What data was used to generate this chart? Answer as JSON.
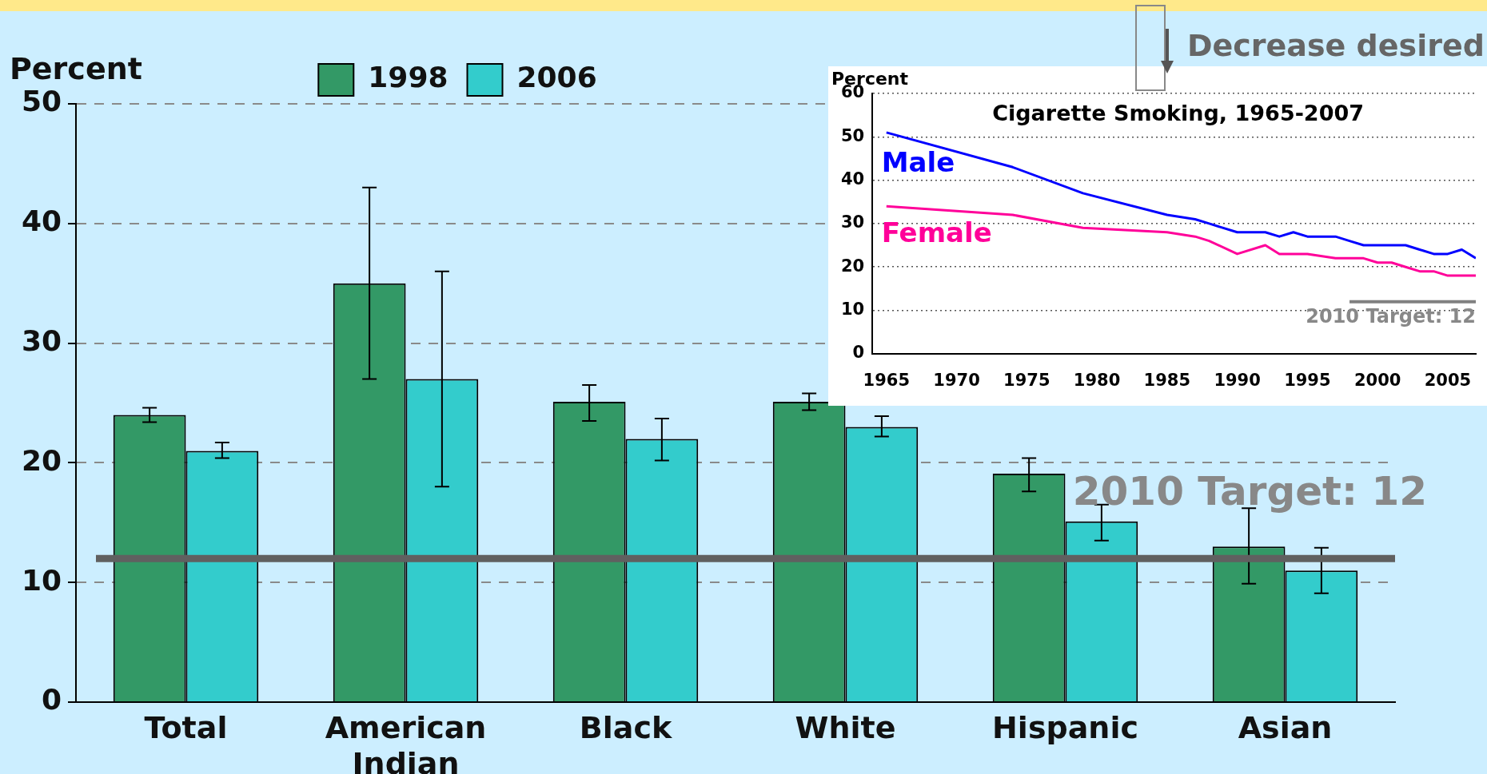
{
  "chart_data": [
    {
      "type": "bar",
      "ylabel": "Percent",
      "categories": [
        "Total",
        "American Indian",
        "Black",
        "White",
        "Hispanic",
        "Asian"
      ],
      "series": [
        {
          "name": "1998",
          "color": "#339966",
          "values": [
            24,
            35,
            25.1,
            25.1,
            19.1,
            13.0
          ],
          "errors": [
            [
              23.4,
              24.6
            ],
            [
              27,
              43
            ],
            [
              23.5,
              26.5
            ],
            [
              24.4,
              25.8
            ],
            [
              17.6,
              20.4
            ],
            [
              9.9,
              16.2
            ]
          ]
        },
        {
          "name": "2006",
          "color": "#33cccc",
          "values": [
            21,
            27,
            22.0,
            23.0,
            15.1,
            11.0
          ],
          "errors": [
            [
              20.4,
              21.7
            ],
            [
              18,
              36
            ],
            [
              20.2,
              23.7
            ],
            [
              22.2,
              23.9
            ],
            [
              13.5,
              16.5
            ],
            [
              9.1,
              12.9
            ]
          ]
        }
      ],
      "ylim": [
        0,
        50
      ],
      "yticks": [
        0,
        10,
        20,
        30,
        40,
        50
      ],
      "grid": "y",
      "legend": "top",
      "ref_lines": [
        {
          "axis": "y",
          "value": 12,
          "label": "2010 Target: 12",
          "color": "#606060"
        }
      ],
      "annotations": [
        "Decrease desired"
      ]
    },
    {
      "type": "line",
      "title": "Cigarette Smoking, 1965-2007",
      "ylabel": "Percent",
      "x": [
        1965,
        1974,
        1979,
        1985,
        1987,
        1988,
        1990,
        1992,
        1993,
        1994,
        1995,
        1997,
        1998,
        1999,
        2000,
        2001,
        2002,
        2003,
        2004,
        2005,
        2006,
        2007
      ],
      "series": [
        {
          "name": "Male",
          "color": "#0000ff",
          "values": [
            51,
            43,
            37,
            32,
            31,
            30,
            28,
            28,
            27,
            28,
            27,
            27,
            26,
            25,
            25,
            25,
            25,
            24,
            23,
            23,
            24,
            22
          ]
        },
        {
          "name": "Female",
          "color": "#ff0099",
          "values": [
            34,
            32,
            29,
            28,
            27,
            26,
            23,
            25,
            23,
            23,
            23,
            22,
            22,
            22,
            21,
            21,
            20,
            19,
            19,
            18,
            18,
            18
          ]
        },
        {
          "type": "line",
          "color": "#808080",
          "x": [
            1998,
            2007
          ],
          "values": [
            12,
            12
          ]
        }
      ],
      "xlim": [
        1964,
        2007
      ],
      "xticks": [
        1965,
        1970,
        1975,
        1980,
        1985,
        1990,
        1995,
        2000,
        2005
      ],
      "ylim": [
        0,
        60
      ],
      "yticks": [
        0,
        10,
        20,
        30,
        40,
        50,
        60
      ],
      "grid": "y",
      "line_style": "solid",
      "marker": "none",
      "annotations": [
        {
          "text": "2010 Target: 12",
          "x": 2007,
          "y": 12
        }
      ]
    }
  ]
}
